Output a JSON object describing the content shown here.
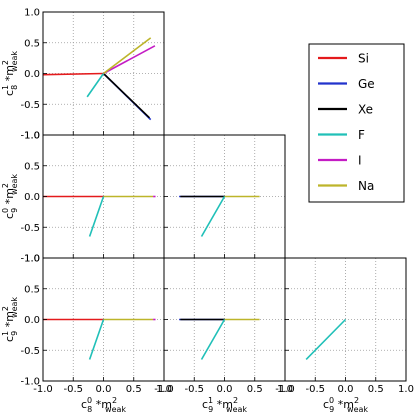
{
  "chart_data": {
    "type": "line",
    "title": "",
    "grid": true,
    "grid_style": "dotted",
    "legend_placement": "upper-right",
    "axis_range": [
      -1.0,
      1.0
    ],
    "ticks": [
      -1.0,
      -0.5,
      0.0,
      0.5,
      1.0
    ],
    "tick_labels": [
      "-1.0",
      "-0.5",
      "0.0",
      "0.5",
      "1.0"
    ],
    "series": [
      {
        "name": "Si",
        "color": "#e41a1c"
      },
      {
        "name": "Ge",
        "color": "#2233cc"
      },
      {
        "name": "Xe",
        "color": "#000000"
      },
      {
        "name": "F",
        "color": "#20c0b8"
      },
      {
        "name": "I",
        "color": "#c41cc4"
      },
      {
        "name": "Na",
        "color": "#bdb52a"
      }
    ],
    "axis_variables": [
      {
        "coef": "c",
        "sup": "1",
        "sub": "8",
        "suffix": "*m",
        "suffix_sup": "2",
        "suffix_sub": "weak"
      },
      {
        "coef": "c",
        "sup": "0",
        "sub": "9",
        "suffix": "*m",
        "suffix_sup": "2",
        "suffix_sub": "weak"
      },
      {
        "coef": "c",
        "sup": "1",
        "sub": "9",
        "suffix": "*m",
        "suffix_sup": "2",
        "suffix_sub": "weak"
      },
      {
        "coef": "c",
        "sup": "0",
        "sub": "8",
        "suffix": "*m",
        "suffix_sup": "2",
        "suffix_sub": "weak"
      }
    ],
    "panels": [
      {
        "row": 0,
        "col": 0,
        "x_var": 3,
        "y_var": 0,
        "lines": [
          {
            "series": "Si",
            "x": [
              -1.0,
              0.0
            ],
            "y": [
              -0.02,
              0.0
            ]
          },
          {
            "series": "Ge",
            "x": [
              0.0,
              0.78
            ],
            "y": [
              0.0,
              -0.75
            ]
          },
          {
            "series": "Xe",
            "x": [
              0.0,
              0.76
            ],
            "y": [
              0.0,
              -0.72
            ]
          },
          {
            "series": "F",
            "x": [
              -0.27,
              0.0
            ],
            "y": [
              -0.38,
              0.0
            ]
          },
          {
            "series": "I",
            "x": [
              0.0,
              0.85
            ],
            "y": [
              0.0,
              0.45
            ]
          },
          {
            "series": "Na",
            "x": [
              0.0,
              0.78
            ],
            "y": [
              0.0,
              0.58
            ]
          }
        ]
      },
      {
        "row": 1,
        "col": 0,
        "x_var": 3,
        "y_var": 1,
        "lines": [
          {
            "series": "Si",
            "x": [
              -1.0,
              0.0
            ],
            "y": [
              0.0,
              0.0
            ]
          },
          {
            "series": "Na",
            "x": [
              0.0,
              0.82
            ],
            "y": [
              0.0,
              0.0
            ]
          },
          {
            "series": "I",
            "x": [
              0.82,
              0.86
            ],
            "y": [
              0.0,
              0.0
            ]
          },
          {
            "series": "F",
            "x": [
              -0.23,
              0.0
            ],
            "y": [
              -0.65,
              0.0
            ]
          }
        ]
      },
      {
        "row": 1,
        "col": 1,
        "x_var": 2,
        "y_var": 1,
        "lines": [
          {
            "series": "Ge",
            "x": [
              -0.75,
              0.0
            ],
            "y": [
              0.0,
              0.0
            ]
          },
          {
            "series": "Xe",
            "x": [
              -0.73,
              0.0
            ],
            "y": [
              0.0,
              0.0
            ]
          },
          {
            "series": "Na",
            "x": [
              0.0,
              0.58
            ],
            "y": [
              0.0,
              0.0
            ]
          },
          {
            "series": "F",
            "x": [
              -0.38,
              0.0
            ],
            "y": [
              -0.65,
              0.0
            ]
          }
        ]
      },
      {
        "row": 2,
        "col": 0,
        "x_var": 3,
        "y_var": 2,
        "lines": [
          {
            "series": "Si",
            "x": [
              -1.0,
              0.0
            ],
            "y": [
              0.0,
              0.0
            ]
          },
          {
            "series": "Na",
            "x": [
              0.0,
              0.82
            ],
            "y": [
              0.0,
              0.0
            ]
          },
          {
            "series": "I",
            "x": [
              0.82,
              0.86
            ],
            "y": [
              0.0,
              0.0
            ]
          },
          {
            "series": "F",
            "x": [
              -0.23,
              0.0
            ],
            "y": [
              -0.65,
              0.0
            ]
          }
        ]
      },
      {
        "row": 2,
        "col": 1,
        "x_var": 2,
        "y_var": 2,
        "lines": [
          {
            "series": "Ge",
            "x": [
              -0.75,
              0.0
            ],
            "y": [
              0.0,
              0.0
            ]
          },
          {
            "series": "Xe",
            "x": [
              -0.73,
              0.0
            ],
            "y": [
              0.0,
              0.0
            ]
          },
          {
            "series": "Na",
            "x": [
              0.0,
              0.58
            ],
            "y": [
              0.0,
              0.0
            ]
          },
          {
            "series": "F",
            "x": [
              -0.38,
              0.0
            ],
            "y": [
              -0.65,
              0.0
            ]
          }
        ]
      },
      {
        "row": 2,
        "col": 2,
        "x_var": 1,
        "y_var": 2,
        "lines": [
          {
            "series": "F",
            "x": [
              -0.65,
              0.0
            ],
            "y": [
              -0.65,
              0.0
            ]
          }
        ]
      }
    ]
  }
}
